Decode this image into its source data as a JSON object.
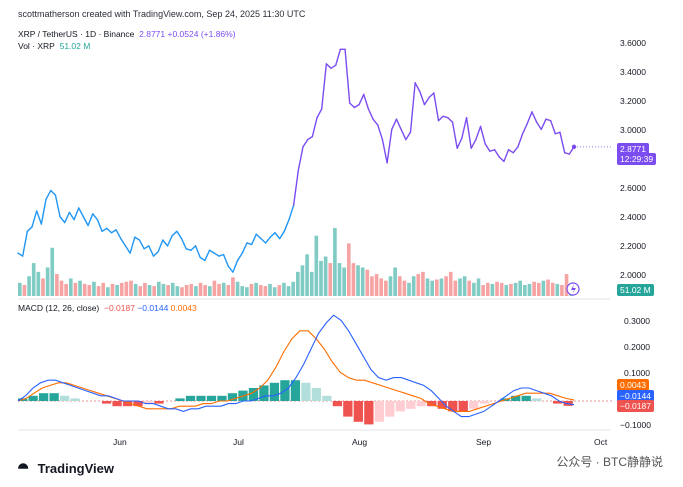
{
  "header": {
    "text": "scottmatherson created with TradingView.com, Sep 24, 2025 11:30 UTC"
  },
  "legend": {
    "symbol": "XRP / TetherUS · 1D · Binance",
    "price": "2.8771",
    "change": "+0.0524 (+1.86%)",
    "vol_label": "Vol · XRP",
    "vol_value": "51.02 M",
    "macd_label": "MACD (12, 26, close)",
    "macd_hist": "−0.0187",
    "macd_line": "−0.0144",
    "macd_signal": "0.0043"
  },
  "price_axis": [
    "3.6000",
    "3.4000",
    "3.2000",
    "3.0000",
    "2.6000",
    "2.4000",
    "2.2000",
    "2.0000"
  ],
  "macd_axis": [
    "0.3000",
    "0.2000",
    "0.1000",
    "−0.1000"
  ],
  "price_tag": {
    "value": "2.8771",
    "time": "12:29:39"
  },
  "vol_tag": "51.02 M",
  "macd_tags": {
    "signal": "0.0043",
    "macd": "−0.0144",
    "hist": "−0.0187"
  },
  "x_axis": [
    "Jun",
    "Jul",
    "Aug",
    "Sep",
    "Oct"
  ],
  "brand": "TradingView",
  "watermark": "公众号 · BTC静静说",
  "colors": {
    "price_up": "#7b4cf0",
    "price_down": "#2196f3",
    "vol_up": "#26a69a",
    "vol_down": "#ef5350",
    "macd": "#2962ff",
    "signal": "#ff6d00"
  },
  "chart_data": [
    {
      "type": "line",
      "title": "XRP / TetherUS · 1D · Binance",
      "x_range": [
        "2025-05-01",
        "2025-09-24"
      ],
      "ylim": [
        1.85,
        3.7
      ],
      "series": [
        {
          "values": [
            2.15,
            2.13,
            2.3,
            2.33,
            2.44,
            2.35,
            2.52,
            2.58,
            2.55,
            2.4,
            2.36,
            2.43,
            2.38,
            2.46,
            2.4,
            2.34,
            2.42,
            2.38,
            2.3,
            2.32,
            2.29,
            2.31,
            2.25,
            2.2,
            2.15,
            2.26,
            2.24,
            2.18,
            2.2,
            2.13,
            2.16,
            2.24,
            2.2,
            2.27,
            2.3,
            2.25,
            2.18,
            2.17,
            2.2,
            2.12,
            2.1,
            2.17,
            2.15,
            2.13,
            2.14,
            2.06,
            2.02,
            2.1,
            2.15,
            2.22,
            2.21,
            2.28,
            2.25,
            2.22,
            2.26,
            2.29,
            2.25,
            2.3,
            2.38,
            2.48,
            2.72,
            2.88,
            2.93,
            2.95,
            3.08,
            3.14,
            3.45,
            3.42,
            3.44,
            3.55,
            3.55,
            3.18,
            3.15,
            3.17,
            3.24,
            3.14,
            3.07,
            3.03,
            2.93,
            2.77,
            3.0,
            3.07,
            3.0,
            2.93,
            2.98,
            3.32,
            3.26,
            3.17,
            3.22,
            3.25,
            3.06,
            3.09,
            3.08,
            3.05,
            2.87,
            2.94,
            3.08,
            2.87,
            2.93,
            3.02,
            2.9,
            2.85,
            2.86,
            2.81,
            2.78,
            2.86,
            2.84,
            2.88,
            2.97,
            3.04,
            3.12,
            3.05,
            3.0,
            3.07,
            3.06,
            2.97,
            2.98,
            2.84,
            2.83,
            2.88
          ]
        }
      ]
    },
    {
      "type": "bar",
      "title": "Vol · XRP",
      "series": [
        {
          "name": "Vol · XRP",
          "values": [
            12,
            10,
            18,
            30,
            22,
            16,
            26,
            44,
            20,
            14,
            11,
            16,
            12,
            14,
            11,
            10,
            13,
            9,
            12,
            8,
            11,
            10,
            12,
            13,
            14,
            11,
            9,
            12,
            10,
            9,
            13,
            11,
            10,
            12,
            9,
            8,
            10,
            11,
            9,
            12,
            10,
            9,
            14,
            11,
            12,
            10,
            17,
            13,
            9,
            8,
            11,
            12,
            10,
            9,
            11,
            8,
            10,
            12,
            9,
            13,
            22,
            28,
            38,
            22,
            55,
            32,
            36,
            30,
            62,
            30,
            26,
            48,
            30,
            28,
            26,
            24,
            18,
            20,
            16,
            14,
            18,
            26,
            18,
            14,
            12,
            18,
            20,
            22,
            16,
            14,
            15,
            16,
            18,
            22,
            14,
            16,
            18,
            14,
            12,
            16,
            10,
            12,
            11,
            13,
            12,
            10,
            11,
            12,
            14,
            10,
            11,
            13,
            12,
            14,
            15,
            12,
            11,
            10,
            20,
            8
          ]
        }
      ]
    },
    {
      "type": "line",
      "title": "MACD (12, 26, close)",
      "ylim": [
        -0.12,
        0.35
      ],
      "series": [
        {
          "name": "MACD",
          "values": [
            0.0,
            0.02,
            0.05,
            0.07,
            0.08,
            0.08,
            0.07,
            0.06,
            0.05,
            0.04,
            0.03,
            0.02,
            0.02,
            0.01,
            0.0,
            0.0,
            0.0,
            -0.01,
            -0.01,
            -0.02,
            -0.03,
            -0.03,
            -0.04,
            -0.03,
            -0.03,
            -0.02,
            -0.02,
            -0.02,
            -0.01,
            -0.01,
            0.0,
            0.0,
            0.01,
            0.02,
            0.02,
            0.03,
            0.05,
            0.09,
            0.14,
            0.2,
            0.26,
            0.3,
            0.33,
            0.31,
            0.27,
            0.22,
            0.17,
            0.12,
            0.09,
            0.08,
            0.09,
            0.09,
            0.08,
            0.07,
            0.06,
            0.04,
            0.01,
            -0.02,
            -0.04,
            -0.06,
            -0.06,
            -0.05,
            -0.04,
            -0.02,
            0.0,
            0.02,
            0.04,
            0.05,
            0.05,
            0.04,
            0.03,
            0.02,
            0.0,
            -0.01,
            -0.0144
          ]
        },
        {
          "name": "Signal",
          "values": [
            0.0,
            0.01,
            0.03,
            0.05,
            0.06,
            0.07,
            0.07,
            0.06,
            0.05,
            0.04,
            0.03,
            0.02,
            0.01,
            0.0,
            -0.01,
            -0.02,
            -0.03,
            -0.03,
            -0.03,
            -0.03,
            -0.02,
            -0.02,
            -0.02,
            -0.01,
            -0.01,
            0.0,
            0.0,
            0.01,
            0.02,
            0.03,
            0.05,
            0.08,
            0.13,
            0.19,
            0.24,
            0.27,
            0.27,
            0.24,
            0.2,
            0.15,
            0.11,
            0.09,
            0.08,
            0.08,
            0.07,
            0.06,
            0.05,
            0.04,
            0.03,
            0.02,
            0.01,
            -0.01,
            -0.02,
            -0.03,
            -0.04,
            -0.04,
            -0.04,
            -0.03,
            -0.02,
            -0.01,
            0.0,
            0.01,
            0.02,
            0.03,
            0.03,
            0.03,
            0.03,
            0.02,
            0.01,
            0.0043
          ]
        },
        {
          "name": "Histogram",
          "values": [
            0.01,
            0.02,
            0.03,
            0.03,
            0.02,
            0.01,
            0.0,
            0.0,
            -0.01,
            -0.02,
            -0.02,
            -0.02,
            -0.01,
            -0.01,
            0.0,
            0.01,
            0.02,
            0.02,
            0.02,
            0.02,
            0.03,
            0.04,
            0.05,
            0.06,
            0.07,
            0.08,
            0.08,
            0.07,
            0.05,
            0.02,
            -0.02,
            -0.06,
            -0.08,
            -0.09,
            -0.08,
            -0.06,
            -0.04,
            -0.03,
            -0.02,
            -0.02,
            -0.03,
            -0.04,
            -0.04,
            -0.03,
            -0.01,
            0.0,
            0.01,
            0.02,
            0.02,
            0.01,
            0.0,
            -0.01,
            -0.0187
          ]
        }
      ]
    }
  ]
}
